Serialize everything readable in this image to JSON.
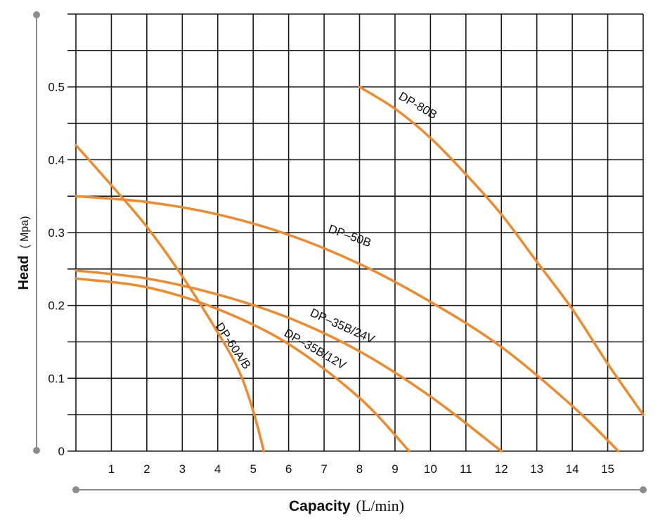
{
  "chart_data": {
    "type": "line",
    "xlabel": "Capacity",
    "xlabel_unit": "(L/min)",
    "ylabel": "Head",
    "ylabel_unit": "( Mpa)",
    "xlim": [
      0,
      16
    ],
    "ylim": [
      0,
      0.6
    ],
    "x_ticks": [
      "1",
      "2",
      "3",
      "4",
      "5",
      "6",
      "7",
      "8",
      "9",
      "10",
      "11",
      "12",
      "13",
      "14",
      "15"
    ],
    "y_ticks": [
      "0",
      "0.1",
      "0.2",
      "0.3",
      "0.4",
      "0.5"
    ],
    "grid": true,
    "line_color": "#ef8a2c",
    "series": [
      {
        "name": "DP-80B",
        "points": [
          [
            8,
            0.5
          ],
          [
            9,
            0.47
          ],
          [
            10,
            0.43
          ],
          [
            11,
            0.38
          ],
          [
            12,
            0.325
          ],
          [
            13,
            0.26
          ],
          [
            14,
            0.195
          ],
          [
            15,
            0.12
          ],
          [
            16,
            0.05
          ]
        ]
      },
      {
        "name": "DP–50B",
        "points": [
          [
            0,
            0.35
          ],
          [
            2,
            0.342
          ],
          [
            4,
            0.325
          ],
          [
            6,
            0.297
          ],
          [
            8,
            0.257
          ],
          [
            10,
            0.205
          ],
          [
            12,
            0.143
          ],
          [
            14,
            0.062
          ],
          [
            15.3,
            0.0
          ]
        ]
      },
      {
        "name": "DP–35B/24V",
        "points": [
          [
            0,
            0.248
          ],
          [
            2,
            0.237
          ],
          [
            4,
            0.215
          ],
          [
            6,
            0.183
          ],
          [
            8,
            0.137
          ],
          [
            10,
            0.075
          ],
          [
            12,
            0.0
          ]
        ]
      },
      {
        "name": "DP–35B/12V",
        "points": [
          [
            0,
            0.237
          ],
          [
            2,
            0.225
          ],
          [
            4,
            0.195
          ],
          [
            6,
            0.147
          ],
          [
            8,
            0.073
          ],
          [
            9.4,
            0.0
          ]
        ]
      },
      {
        "name": "DP-60A/B",
        "points": [
          [
            0,
            0.42
          ],
          [
            1,
            0.365
          ],
          [
            2,
            0.308
          ],
          [
            3,
            0.24
          ],
          [
            4,
            0.163
          ],
          [
            4.6,
            0.11
          ],
          [
            5,
            0.055
          ],
          [
            5.3,
            0.0
          ]
        ]
      }
    ]
  }
}
